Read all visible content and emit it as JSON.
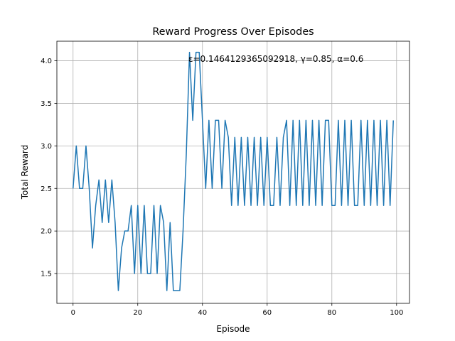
{
  "chart_data": {
    "type": "line",
    "title": "Reward Progress Over Episodes",
    "xlabel": "Episode",
    "ylabel": "Total Reward",
    "annotation": "ε=0.1464129365092918, γ=0.85, α=0.6",
    "xlim": [
      -5,
      104
    ],
    "ylim": [
      1.15,
      4.23
    ],
    "xticks": [
      0,
      20,
      40,
      60,
      80,
      100
    ],
    "xtick_labels": [
      "0",
      "20",
      "40",
      "60",
      "80",
      "100"
    ],
    "yticks": [
      1.5,
      2.0,
      2.5,
      3.0,
      3.5,
      4.0
    ],
    "ytick_labels": [
      "1.5",
      "2.0",
      "2.5",
      "3.0",
      "3.5",
      "4.0"
    ],
    "grid": true,
    "line_color": "#1f77b4",
    "series": [
      {
        "x": [
          0,
          1,
          2,
          3,
          4,
          5,
          6,
          7,
          8,
          9,
          10,
          11,
          12,
          13,
          14,
          15,
          16,
          17,
          18,
          19,
          20,
          21,
          22,
          23,
          24,
          25,
          26,
          27,
          28,
          29,
          30,
          31,
          32,
          33,
          34,
          35,
          36,
          37,
          38,
          39,
          40,
          41,
          42,
          43,
          44,
          45,
          46,
          47,
          48,
          49,
          50,
          51,
          52,
          53,
          54,
          55,
          56,
          57,
          58,
          59,
          60,
          61,
          62,
          63,
          64,
          65,
          66,
          67,
          68,
          69,
          70,
          71,
          72,
          73,
          74,
          75,
          76,
          77,
          78,
          79,
          80,
          81,
          82,
          83,
          84,
          85,
          86,
          87,
          88,
          89,
          90,
          91,
          92,
          93,
          94,
          95,
          96,
          97,
          98,
          99
        ],
        "values": [
          2.5,
          3.0,
          2.5,
          2.5,
          3.0,
          2.5,
          1.8,
          2.3,
          2.6,
          2.1,
          2.6,
          2.1,
          2.6,
          2.1,
          1.3,
          1.8,
          2.0,
          2.0,
          2.3,
          1.5,
          2.3,
          1.5,
          2.3,
          1.5,
          1.5,
          2.3,
          1.5,
          2.3,
          2.1,
          1.3,
          2.1,
          1.3,
          1.3,
          1.3,
          2.0,
          2.9,
          4.1,
          3.3,
          4.1,
          4.1,
          3.3,
          2.5,
          3.3,
          2.5,
          3.3,
          3.3,
          2.5,
          3.3,
          3.1,
          2.3,
          3.1,
          2.3,
          3.1,
          2.3,
          3.1,
          2.3,
          3.1,
          2.3,
          3.1,
          2.3,
          3.1,
          2.3,
          2.3,
          3.1,
          2.3,
          3.1,
          3.3,
          2.3,
          3.3,
          2.3,
          3.3,
          2.3,
          3.3,
          2.3,
          3.3,
          2.3,
          3.3,
          2.3,
          3.3,
          3.3,
          2.3,
          2.3,
          3.3,
          2.3,
          3.3,
          2.3,
          3.3,
          2.3,
          2.3,
          3.3,
          2.3,
          3.3,
          2.3,
          3.3,
          2.3,
          3.3,
          2.3,
          3.3,
          2.3,
          3.3
        ]
      }
    ]
  }
}
